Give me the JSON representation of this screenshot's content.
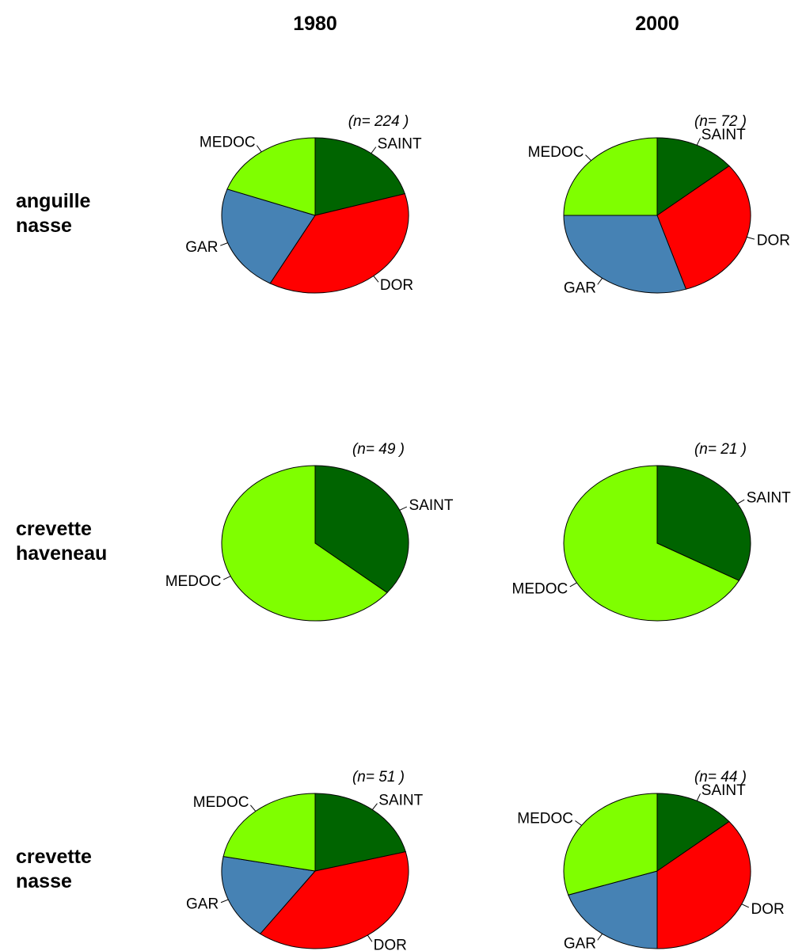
{
  "column_headers": [
    "1980",
    "2000"
  ],
  "row_labels": [
    [
      "anguille",
      "nasse"
    ],
    [
      "crevette",
      "haveneau"
    ],
    [
      "crevette",
      "nasse"
    ]
  ],
  "colors": {
    "SAINT": "#006400",
    "DOR": "#ff0000",
    "GAR": "#4682b4",
    "MEDOC": "#7fff00"
  },
  "chart_data": [
    {
      "type": "pie",
      "row": 0,
      "col": 0,
      "n_label": "(n= 224 )",
      "slices": [
        {
          "label": "SAINT",
          "value": 20.5
        },
        {
          "label": "DOR",
          "value": 37.5
        },
        {
          "label": "GAR",
          "value": 22.5
        },
        {
          "label": "MEDOC",
          "value": 19.5
        }
      ]
    },
    {
      "type": "pie",
      "row": 0,
      "col": 1,
      "n_label": "(n= 72 )",
      "slices": [
        {
          "label": "SAINT",
          "value": 14
        },
        {
          "label": "DOR",
          "value": 31
        },
        {
          "label": "GAR",
          "value": 30
        },
        {
          "label": "MEDOC",
          "value": 25
        }
      ]
    },
    {
      "type": "pie",
      "row": 1,
      "col": 0,
      "n_label": "(n= 49 )",
      "slices": [
        {
          "label": "SAINT",
          "value": 36
        },
        {
          "label": "MEDOC",
          "value": 64
        }
      ]
    },
    {
      "type": "pie",
      "row": 1,
      "col": 1,
      "n_label": "(n= 21 )",
      "slices": [
        {
          "label": "SAINT",
          "value": 33
        },
        {
          "label": "MEDOC",
          "value": 67
        }
      ]
    },
    {
      "type": "pie",
      "row": 2,
      "col": 0,
      "n_label": "(n= 51 )",
      "slices": [
        {
          "label": "SAINT",
          "value": 21
        },
        {
          "label": "DOR",
          "value": 39
        },
        {
          "label": "GAR",
          "value": 18
        },
        {
          "label": "MEDOC",
          "value": 22
        }
      ]
    },
    {
      "type": "pie",
      "row": 2,
      "col": 1,
      "n_label": "(n= 44 )",
      "slices": [
        {
          "label": "SAINT",
          "value": 14
        },
        {
          "label": "DOR",
          "value": 36
        },
        {
          "label": "GAR",
          "value": 20
        },
        {
          "label": "MEDOC",
          "value": 30
        }
      ]
    }
  ]
}
